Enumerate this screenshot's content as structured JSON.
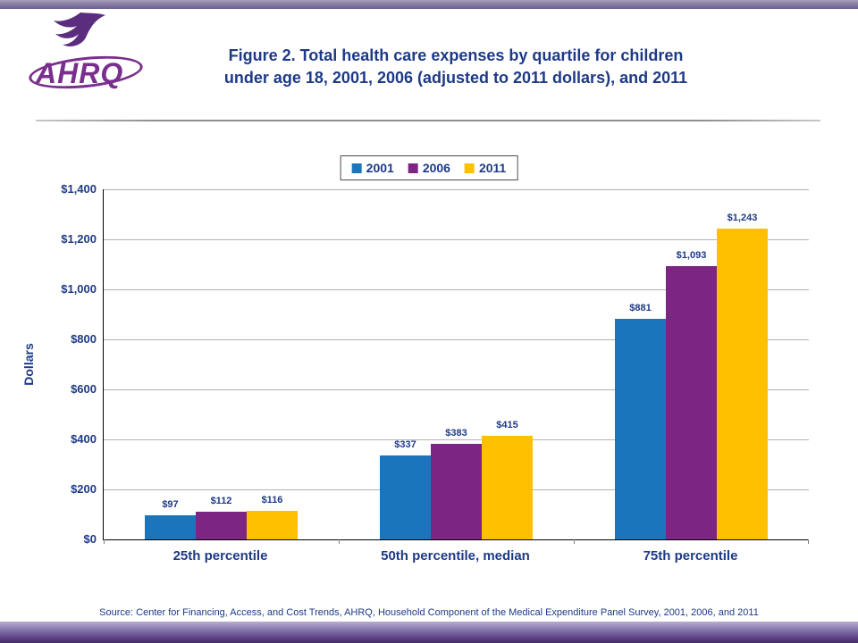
{
  "page": {
    "logo_text": "AHRQ",
    "title_line1": "Figure 2. Total health care expenses by quartile for children",
    "title_line2": "under age 18, 2001, 2006 (adjusted to 2011 dollars), and 2011",
    "source": "Source: Center for Financing, Access, and Cost Trends, AHRQ, Household Component of the Medical Expenditure Panel Survey, 2001, 2006, and 2011"
  },
  "colors": {
    "text_navy": "#1e3a87",
    "logo_purple": "#7a2e8e",
    "strip_purple": "#5d4387"
  },
  "chart_data": {
    "type": "bar",
    "title": "Figure 2. Total health care expenses by quartile for children under age 18, 2001, 2006 (adjusted to 2011 dollars), and 2011",
    "categories": [
      "25th percentile",
      "50th percentile, median",
      "75th percentile"
    ],
    "series": [
      {
        "name": "2001",
        "color": "#1b75bc",
        "values": [
          97,
          337,
          881
        ]
      },
      {
        "name": "2006",
        "color": "#7d2582",
        "values": [
          112,
          383,
          1093
        ]
      },
      {
        "name": "2011",
        "color": "#ffc000",
        "values": [
          116,
          415,
          1243
        ]
      }
    ],
    "xlabel": "",
    "ylabel": "Dollars",
    "ylim": [
      0,
      1400
    ],
    "ytick_step": 200,
    "ytick_format": "dollar",
    "grid": true,
    "legend_position": "top",
    "value_labels": true
  }
}
